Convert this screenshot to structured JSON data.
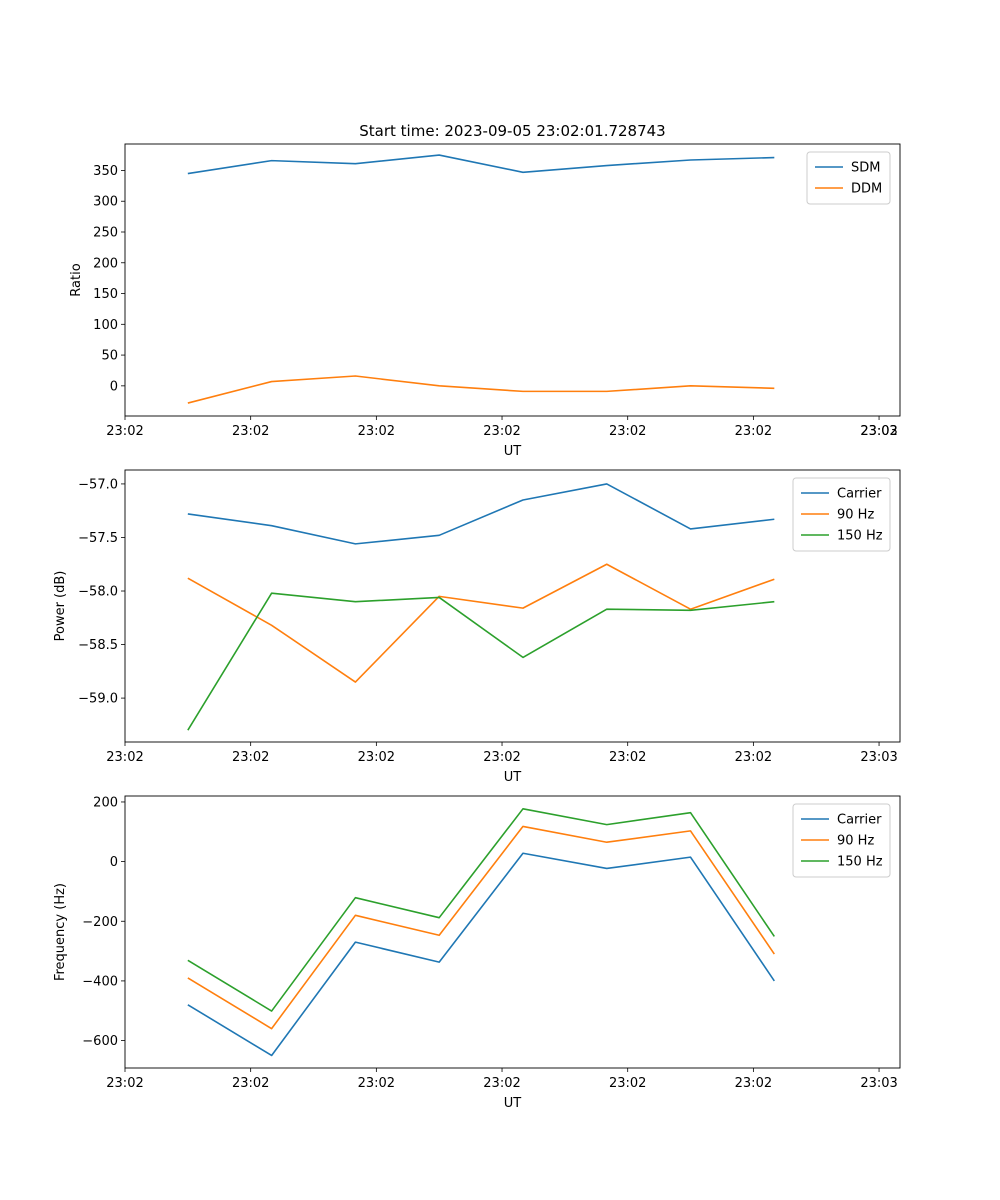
{
  "chart_data": [
    {
      "type": "line",
      "title": "Start time: 2023-09-05 23:02:01.728743",
      "xlabel": "UT",
      "ylabel": "Ratio",
      "x": [
        0,
        1,
        2,
        3,
        4,
        5,
        6,
        7
      ],
      "xlim": [
        -0.75,
        8.5
      ],
      "xticks": [
        -0.75,
        0.75,
        2.25,
        3.75,
        5.25,
        6.75,
        8.25
      ],
      "xtick_labels": [
        "23:02",
        "23:02",
        "23:02",
        "23:02",
        "23:02",
        "23:02",
        "23:02"
      ],
      "extra_xtick_labels": [
        "23:03"
      ],
      "ylim": [
        -49,
        393
      ],
      "yticks": [
        0,
        50,
        100,
        150,
        200,
        250,
        300,
        350
      ],
      "ytick_labels": [
        "0",
        "50",
        "100",
        "150",
        "200",
        "250",
        "300",
        "350"
      ],
      "legend_position": "top-right",
      "series": [
        {
          "name": "SDM",
          "color": "#1f77b4",
          "values": [
            345,
            366,
            361,
            375,
            347,
            358,
            367,
            371
          ]
        },
        {
          "name": "DDM",
          "color": "#ff7f0e",
          "values": [
            -28,
            7,
            16,
            0,
            -9,
            -9,
            0,
            -4
          ]
        }
      ]
    },
    {
      "type": "line",
      "title": "",
      "xlabel": "UT",
      "ylabel": "Power (dB)",
      "x": [
        0,
        1,
        2,
        3,
        4,
        5,
        6,
        7
      ],
      "xlim": [
        -0.75,
        8.5
      ],
      "xticks": [
        -0.75,
        0.75,
        2.25,
        3.75,
        5.25,
        6.75,
        8.25
      ],
      "xtick_labels": [
        "23:02",
        "23:02",
        "23:02",
        "23:02",
        "23:02",
        "23:02",
        "23:03"
      ],
      "ylim": [
        -59.41,
        -56.87
      ],
      "yticks": [
        -59.0,
        -58.5,
        -58.0,
        -57.5,
        -57.0
      ],
      "ytick_labels": [
        "−59.0",
        "−58.5",
        "−58.0",
        "−57.5",
        "−57.0"
      ],
      "legend_position": "top-right",
      "series": [
        {
          "name": "Carrier",
          "color": "#1f77b4",
          "values": [
            -57.28,
            -57.39,
            -57.56,
            -57.48,
            -57.15,
            -57.0,
            -57.42,
            -57.33
          ]
        },
        {
          "name": "90 Hz",
          "color": "#ff7f0e",
          "values": [
            -57.88,
            -58.32,
            -58.85,
            -58.05,
            -58.16,
            -57.75,
            -58.17,
            -57.89
          ]
        },
        {
          "name": "150 Hz",
          "color": "#2ca02c",
          "values": [
            -59.3,
            -58.02,
            -58.1,
            -58.06,
            -58.62,
            -58.17,
            -58.18,
            -58.1
          ]
        }
      ]
    },
    {
      "type": "line",
      "title": "",
      "xlabel": "UT",
      "ylabel": "Frequency (Hz)",
      "x": [
        0,
        1,
        2,
        3,
        4,
        5,
        6,
        7
      ],
      "xlim": [
        -0.75,
        8.5
      ],
      "xticks": [
        -0.75,
        0.75,
        2.25,
        3.75,
        5.25,
        6.75,
        8.25
      ],
      "xtick_labels": [
        "23:02",
        "23:02",
        "23:02",
        "23:02",
        "23:02",
        "23:02",
        "23:03"
      ],
      "ylim": [
        -692,
        220
      ],
      "yticks": [
        -600,
        -400,
        -200,
        0,
        200
      ],
      "ytick_labels": [
        "−600",
        "−400",
        "−200",
        "0",
        "200"
      ],
      "legend_position": "top-right",
      "series": [
        {
          "name": "Carrier",
          "color": "#1f77b4",
          "values": [
            -480,
            -650,
            -270,
            -337,
            28,
            -23,
            15,
            -400
          ]
        },
        {
          "name": "90 Hz",
          "color": "#ff7f0e",
          "values": [
            -390,
            -560,
            -180,
            -247,
            118,
            65,
            103,
            -310
          ]
        },
        {
          "name": "150 Hz",
          "color": "#2ca02c",
          "values": [
            -331,
            -501,
            -121,
            -188,
            177,
            124,
            164,
            -251
          ]
        }
      ]
    }
  ]
}
